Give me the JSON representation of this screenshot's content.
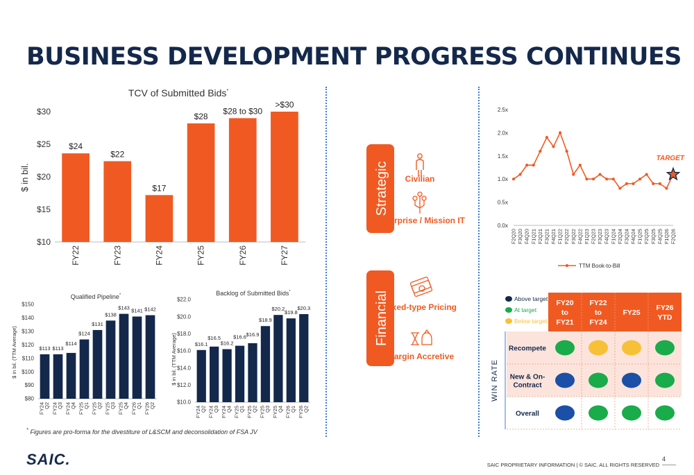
{
  "page": {
    "title": "BUSINESS DEVELOPMENT PROGRESS CONTINUES",
    "footnote": "Figures are pro-forma for the divestiture of L&SCM and deconsolidation of FSA JV",
    "footnote_mark": "*",
    "logo": "SAIC.",
    "proprietary": "SAIC PROPRIETARY INFORMATION  |  © SAIC. ALL RIGHTS RESERVED",
    "page_number": "4",
    "colors": {
      "orange": "#f05a22",
      "navy": "#14284b",
      "green": "#1aab4b",
      "yellow": "#f7c137",
      "blue": "#1b4fa8",
      "pink_bg": "#fce4dc"
    }
  },
  "chart_data": [
    {
      "id": "tcv",
      "type": "bar",
      "title": "TCV of Submitted Bids",
      "title_mark": "*",
      "ylabel": "$ in bil.",
      "ylim": [
        10,
        30
      ],
      "yticks": [
        "$10",
        "$15",
        "$20",
        "$25",
        "$30"
      ],
      "categories": [
        "FY22",
        "FY23",
        "FY24",
        "FY25",
        "FY26",
        "FY27"
      ],
      "values": [
        23.6,
        22.4,
        17.2,
        28.2,
        29.0,
        30.0
      ],
      "labels": [
        "$24",
        "$22",
        "$17",
        "$28",
        "$28 to $30",
        ">$30"
      ],
      "color": "#f05a22"
    },
    {
      "id": "pipeline",
      "type": "bar",
      "title": "Qualified Pipeline",
      "title_mark": "*",
      "ylabel": "$ in bil. (TTM Average)",
      "ylim": [
        80,
        150
      ],
      "yticks": [
        "$80",
        "$90",
        "$100",
        "$110",
        "$120",
        "$130",
        "$140",
        "$150"
      ],
      "categories": [
        "FY24 Q2",
        "FY24 Q3",
        "FY24 Q4",
        "FY25 Q1",
        "FY25 Q2",
        "FY25 Q3",
        "FY25 Q4",
        "FY26 Q1",
        "FY26 Q2"
      ],
      "values": [
        113,
        113,
        114,
        124,
        131,
        138,
        143,
        141,
        142
      ],
      "labels": [
        "$113",
        "$113",
        "$114",
        "$124",
        "$131",
        "$138",
        "$143",
        "$141",
        "$142"
      ],
      "color": "#14284b"
    },
    {
      "id": "backlog",
      "type": "bar",
      "title": "Backlog of Submitted Bids",
      "title_mark": "*",
      "ylabel": "$ in bil. (TTM Average)",
      "ylim": [
        10,
        22
      ],
      "yticks": [
        "$10.0",
        "$12.0",
        "$14.0",
        "$16.0",
        "$18.0",
        "$20.0",
        "$22.0"
      ],
      "categories": [
        "FY24 Q2",
        "FY24 Q3",
        "FY24 Q4",
        "FY25 Q1",
        "FY25 Q2",
        "FY25 Q3",
        "FY25 Q4",
        "FY26 Q1",
        "FY26 Q2"
      ],
      "values": [
        16.1,
        16.5,
        16.2,
        16.6,
        16.9,
        18.9,
        20.2,
        19.8,
        20.3
      ],
      "labels": [
        "$16.1",
        "$16.5",
        "$16.2",
        "$16.6",
        "$16.9",
        "$18.9",
        "$20.2",
        "$19.8",
        "$20.3"
      ],
      "color": "#14284b"
    },
    {
      "id": "book_to_bill",
      "type": "line",
      "ylim": [
        0,
        2.5
      ],
      "yticks": [
        "0.0x",
        "0.5x",
        "1.0x",
        "1.5x",
        "2.0x",
        "2.5x"
      ],
      "x": [
        "F2Q20",
        "F3Q20",
        "F4Q20",
        "F1Q21",
        "F2Q21",
        "F3Q21",
        "F4Q21",
        "F1Q22",
        "F2Q22",
        "F3Q22",
        "F4Q22",
        "F1Q23",
        "F2Q23",
        "F3Q23",
        "F4Q23",
        "F1Q24",
        "F2Q24",
        "F3Q24",
        "F4Q24",
        "F1Q25",
        "F2Q25",
        "F3Q25",
        "F4Q25",
        "F1Q26",
        "F2Q26"
      ],
      "series": [
        {
          "name": "TTM Book-to-Bill",
          "values": [
            1.0,
            1.1,
            1.3,
            1.3,
            1.6,
            1.9,
            1.7,
            2.0,
            1.6,
            1.1,
            1.3,
            1.0,
            1.0,
            1.1,
            1.0,
            1.0,
            0.8,
            0.9,
            0.9,
            1.0,
            1.1,
            0.9,
            0.9,
            0.8,
            1.1
          ],
          "color": "#f05a22"
        }
      ],
      "target_label": "TARGET",
      "target_value": 1.1,
      "legend": "bottom"
    }
  ],
  "priorities": {
    "strategic": {
      "label": "Strategic",
      "items": [
        {
          "icon": "person-icon",
          "label": "Civilian"
        },
        {
          "icon": "network-icon",
          "label": "Enterprise / Mission IT"
        }
      ]
    },
    "financial": {
      "label": "Financial",
      "items": [
        {
          "icon": "money-icon",
          "label": "Fixed-type Pricing"
        },
        {
          "icon": "hourglass-money-icon",
          "label": "Margin Accretive"
        }
      ]
    }
  },
  "win_rate": {
    "axis_label": "WIN RATE",
    "legend": [
      {
        "label": "Above target",
        "color": "#14284b"
      },
      {
        "label": "At target",
        "color": "#1aab4b"
      },
      {
        "label": "Below target",
        "color": "#f7c137"
      }
    ],
    "columns": [
      "FY20 to FY21",
      "FY22 to FY24",
      "FY25",
      "FY26 YTD"
    ],
    "rows": [
      {
        "label": "Recompete",
        "status": [
          "at",
          "below",
          "below",
          "at"
        ]
      },
      {
        "label": "New & On-Contract",
        "status": [
          "above",
          "at",
          "above",
          "at"
        ]
      },
      {
        "label": "Overall",
        "status": [
          "above",
          "at",
          "at",
          "at"
        ]
      }
    ]
  }
}
